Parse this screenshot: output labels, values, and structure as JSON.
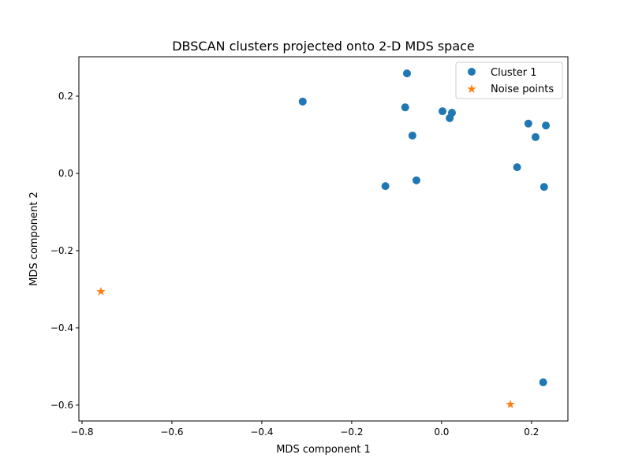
{
  "chart_data": {
    "type": "scatter",
    "title": "DBSCAN clusters projected onto 2-D MDS space",
    "xlabel": "MDS component 1",
    "ylabel": "MDS component 2",
    "xlim": [
      -0.807,
      0.281
    ],
    "ylim": [
      -0.641,
      0.302
    ],
    "xticks": [
      -0.8,
      -0.6,
      -0.4,
      -0.2,
      0.0,
      0.2
    ],
    "xtick_labels": [
      "−0.8",
      "−0.6",
      "−0.4",
      "−0.2",
      "0.0",
      "0.2"
    ],
    "yticks": [
      -0.6,
      -0.4,
      -0.2,
      0.0,
      0.2
    ],
    "ytick_labels": [
      "−0.6",
      "−0.4",
      "−0.2",
      "0.0",
      "0.2"
    ],
    "grid": false,
    "legend_position": "top-right",
    "series": [
      {
        "name": "Cluster 1",
        "marker": "circle",
        "color": "#1f77b4",
        "points": [
          [
            -0.309,
            0.186
          ],
          [
            -0.077,
            0.259
          ],
          [
            -0.081,
            0.171
          ],
          [
            -0.065,
            0.098
          ],
          [
            0.002,
            0.161
          ],
          [
            0.018,
            0.143
          ],
          [
            0.023,
            0.157
          ],
          [
            0.193,
            0.129
          ],
          [
            0.232,
            0.124
          ],
          [
            0.209,
            0.094
          ],
          [
            0.168,
            0.016
          ],
          [
            -0.125,
            -0.033
          ],
          [
            -0.056,
            -0.018
          ],
          [
            0.228,
            -0.035
          ],
          [
            0.226,
            -0.541
          ]
        ]
      },
      {
        "name": "Noise points",
        "marker": "star",
        "color": "#ff7f0e",
        "points": [
          [
            -0.758,
            -0.306
          ],
          [
            0.153,
            -0.598
          ]
        ]
      }
    ]
  }
}
